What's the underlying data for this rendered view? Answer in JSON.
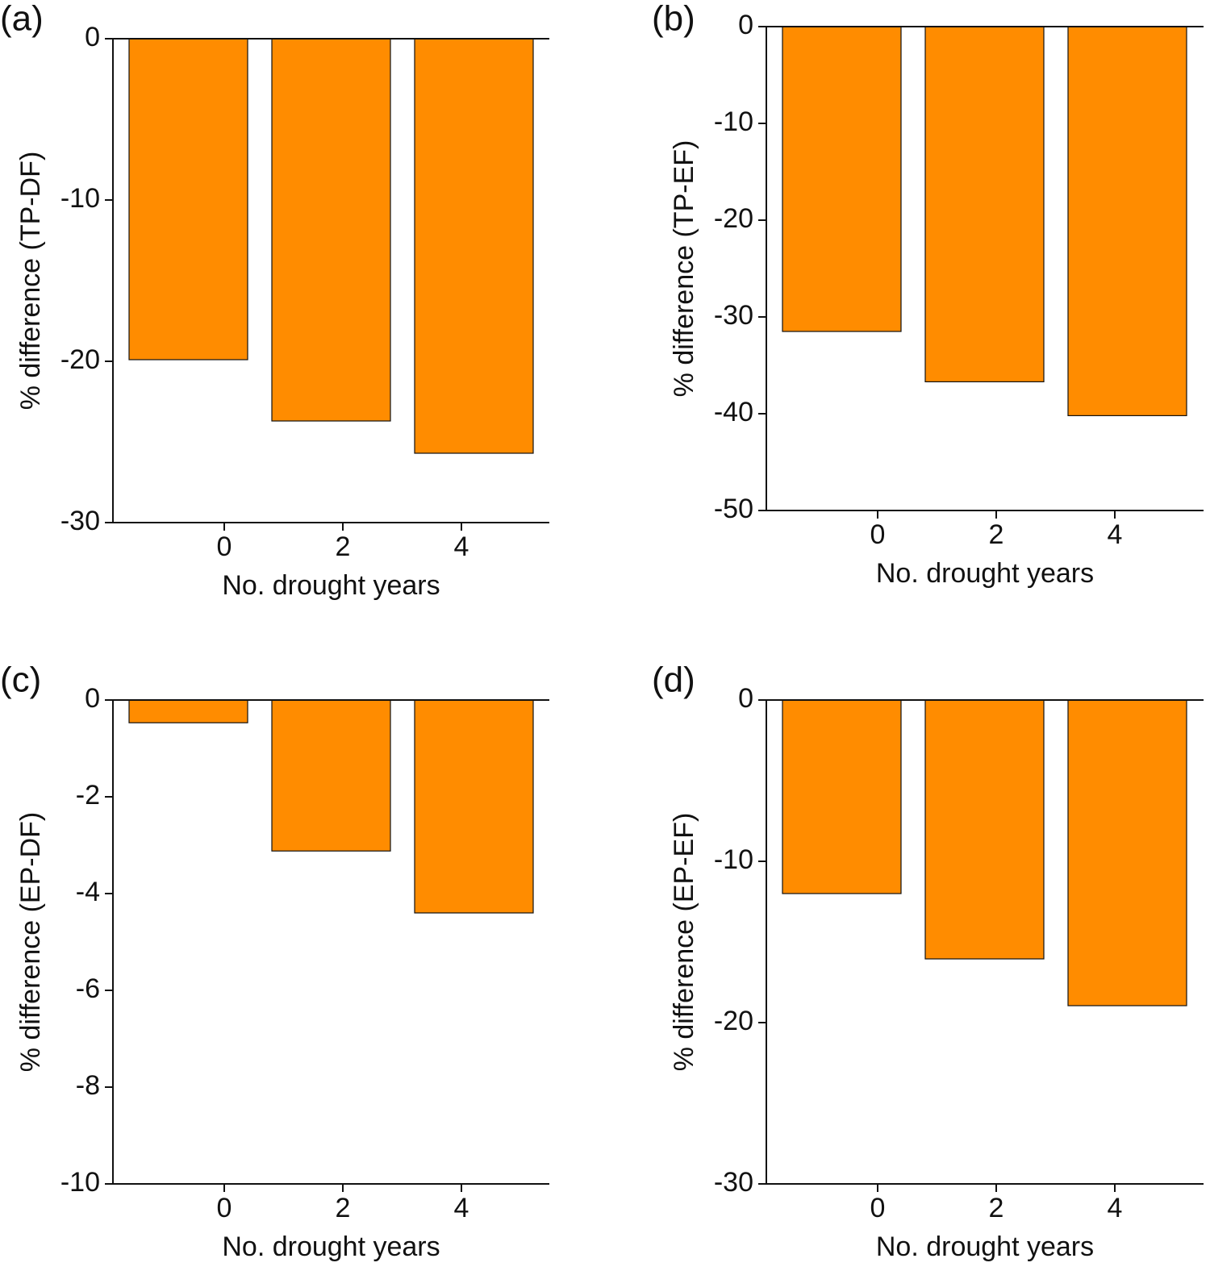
{
  "chart_data": [
    {
      "type": "bar",
      "panel_label": "(a)",
      "categories": [
        "0",
        "2",
        "4"
      ],
      "values": [
        -19.9,
        -23.7,
        -25.7
      ],
      "color": "#ff8c00",
      "xlabel": "No. drought years",
      "ylabel": "% difference (TP-DF)",
      "ylim": [
        -30,
        0
      ],
      "yticks": [
        0,
        -10,
        -20,
        -30
      ]
    },
    {
      "type": "bar",
      "panel_label": "(b)",
      "categories": [
        "0",
        "2",
        "4"
      ],
      "values": [
        -31.5,
        -36.7,
        -40.2
      ],
      "color": "#ff8c00",
      "xlabel": "No. drought years",
      "ylabel": "% difference (TP-EF)",
      "ylim": [
        -50,
        0
      ],
      "yticks": [
        0,
        -10,
        -20,
        -30,
        -40,
        -50
      ]
    },
    {
      "type": "bar",
      "panel_label": "(c)",
      "categories": [
        "0",
        "2",
        "4"
      ],
      "values": [
        -0.47,
        -3.12,
        -4.4
      ],
      "color": "#ff8c00",
      "xlabel": "No. drought years",
      "ylabel": "% difference (EP-DF)",
      "ylim": [
        -10,
        0
      ],
      "yticks": [
        0,
        -2,
        -4,
        -6,
        -8,
        -10
      ]
    },
    {
      "type": "bar",
      "panel_label": "(d)",
      "categories": [
        "0",
        "2",
        "4"
      ],
      "values": [
        -12.0,
        -16.05,
        -18.95
      ],
      "color": "#ff8c00",
      "xlabel": "No. drought years",
      "ylabel": "% difference (EP-EF)",
      "ylim": [
        -30,
        0
      ],
      "yticks": [
        0,
        -10,
        -20,
        -30
      ]
    }
  ]
}
